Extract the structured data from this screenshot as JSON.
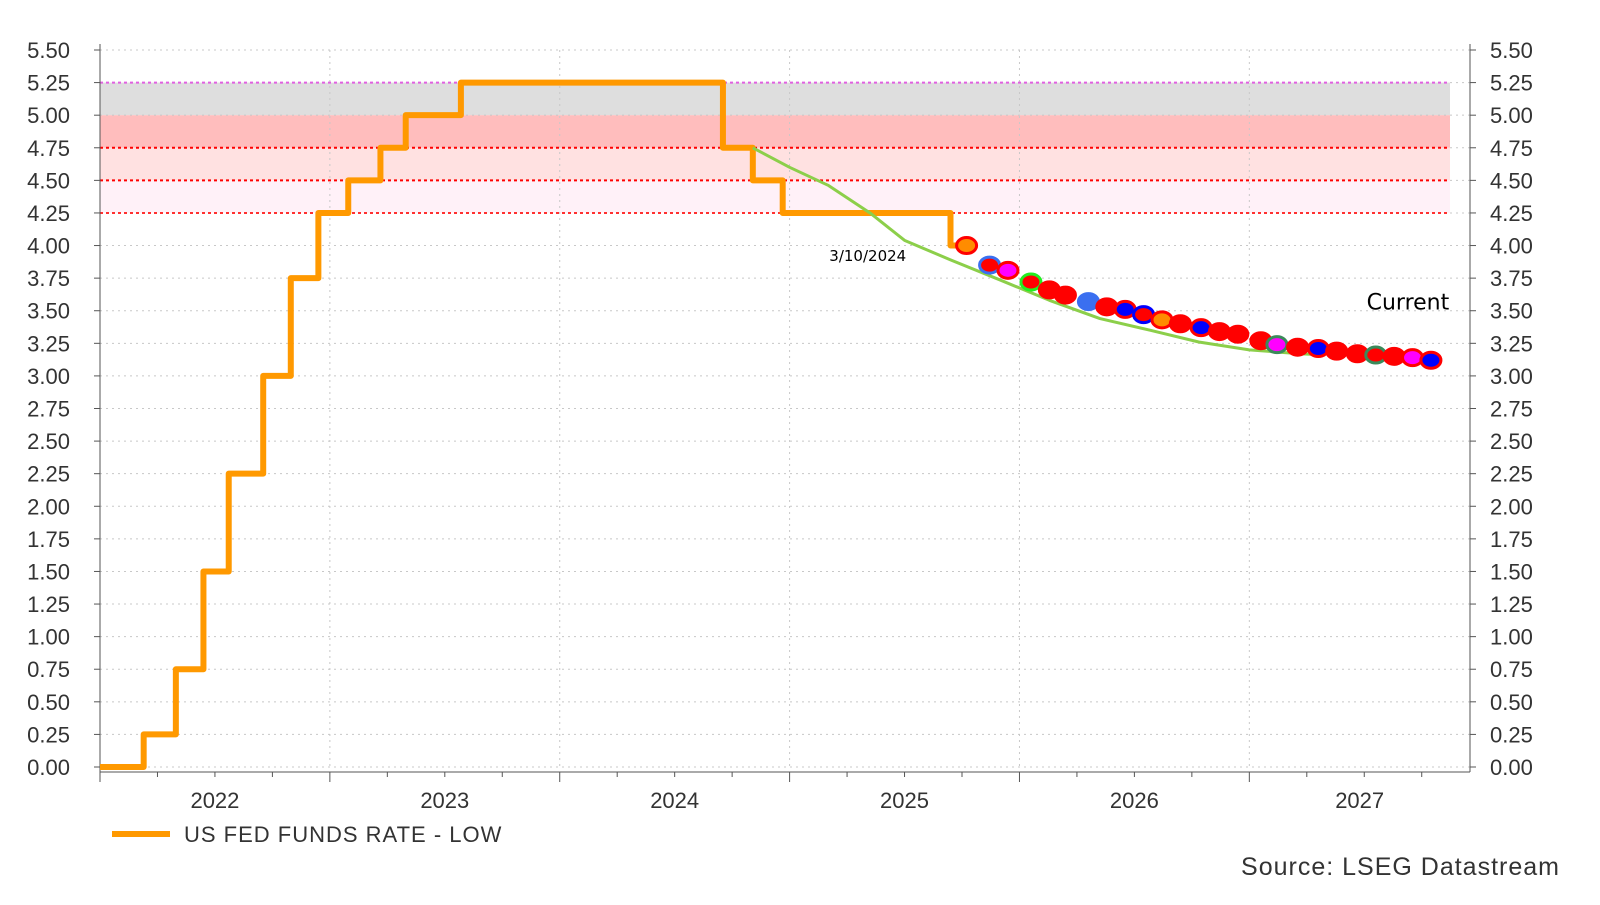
{
  "chart_data": {
    "type": "line",
    "title": "",
    "xlabel": "",
    "ylabel": "",
    "ylim": [
      0,
      5.5
    ],
    "y_ticks": [
      "0.00",
      "0.25",
      "0.50",
      "0.75",
      "1.00",
      "1.25",
      "1.50",
      "1.75",
      "2.00",
      "2.25",
      "2.50",
      "2.75",
      "3.00",
      "3.25",
      "3.50",
      "3.75",
      "4.00",
      "4.25",
      "4.50",
      "4.75",
      "5.00",
      "5.25",
      "5.50"
    ],
    "xlim": [
      2022.0,
      2027.96
    ],
    "x_tick_labels": [
      "2022",
      "2023",
      "2024",
      "2025",
      "2026",
      "2027"
    ],
    "grid": true,
    "legend": {
      "placement": "bottom-left",
      "entries": [
        {
          "label": "US FED FUNDS RATE - LOW",
          "color": "#ff9900"
        }
      ]
    },
    "source": "Source: LSEG Datastream",
    "bands": [
      {
        "from": 5.0,
        "to": 5.25,
        "color": "#dedede"
      },
      {
        "from": 4.75,
        "to": 5.0,
        "color": "#ffbdbd"
      },
      {
        "from": 4.5,
        "to": 4.75,
        "color": "#ffe1e1"
      },
      {
        "from": 4.25,
        "to": 4.5,
        "color": "#fff1f8"
      }
    ],
    "ref_lines": [
      {
        "y": 5.25,
        "color": "#e060e0"
      },
      {
        "y": 4.75,
        "color": "#ff0000"
      },
      {
        "y": 4.5,
        "color": "#ff0000"
      },
      {
        "y": 4.25,
        "color": "#ff3030"
      }
    ],
    "series": [
      {
        "name": "US FED FUNDS RATE - LOW",
        "color": "#ff9900",
        "step": true,
        "points": [
          [
            2022.0,
            0
          ],
          [
            2022.19,
            0.25
          ],
          [
            2022.33,
            0.75
          ],
          [
            2022.45,
            1.5
          ],
          [
            2022.56,
            2.25
          ],
          [
            2022.71,
            3.0
          ],
          [
            2022.83,
            3.75
          ],
          [
            2022.95,
            4.25
          ],
          [
            2023.08,
            4.5
          ],
          [
            2023.22,
            4.75
          ],
          [
            2023.33,
            5.0
          ],
          [
            2023.57,
            5.25
          ],
          [
            2024.71,
            4.75
          ],
          [
            2024.84,
            4.5
          ],
          [
            2024.97,
            4.25
          ],
          [
            2025.7,
            4.0
          ],
          [
            2025.76,
            4.0
          ]
        ]
      },
      {
        "name": "3/10/2024",
        "color": "#8ccf4a",
        "points": [
          [
            2024.84,
            4.75
          ],
          [
            2025.0,
            4.6
          ],
          [
            2025.17,
            4.46
          ],
          [
            2025.35,
            4.25
          ],
          [
            2025.5,
            4.04
          ],
          [
            2025.7,
            3.89
          ],
          [
            2025.91,
            3.74
          ],
          [
            2026.13,
            3.58
          ],
          [
            2026.35,
            3.44
          ],
          [
            2026.57,
            3.35
          ],
          [
            2026.78,
            3.26
          ],
          [
            2027.0,
            3.2
          ],
          [
            2027.22,
            3.17
          ],
          [
            2027.33,
            3.16
          ]
        ]
      },
      {
        "name": "Current",
        "type": "scatter",
        "points": [
          {
            "x": 2025.77,
            "y": 4.0,
            "fill": "#ff8c00",
            "stroke": "#ff0000"
          },
          {
            "x": 2025.87,
            "y": 3.85,
            "fill": "#ff0000",
            "stroke": "#3a6ff0"
          },
          {
            "x": 2025.95,
            "y": 3.81,
            "fill": "#ff00ff",
            "stroke": "#ff0000"
          },
          {
            "x": 2026.05,
            "y": 3.72,
            "fill": "#ff0000",
            "stroke": "#22ee22"
          },
          {
            "x": 2026.13,
            "y": 3.66,
            "fill": "#ff0000",
            "stroke": "#ff0000"
          },
          {
            "x": 2026.2,
            "y": 3.62,
            "fill": "#ff0000",
            "stroke": "#ff0000"
          },
          {
            "x": 2026.3,
            "y": 3.57,
            "fill": "#3a6ff0",
            "stroke": "#3a6ff0"
          },
          {
            "x": 2026.38,
            "y": 3.53,
            "fill": "#ff0000",
            "stroke": "#ff0000"
          },
          {
            "x": 2026.46,
            "y": 3.51,
            "fill": "#0000ff",
            "stroke": "#ff0000"
          },
          {
            "x": 2026.54,
            "y": 3.47,
            "fill": "#ff0000",
            "stroke": "#0000ff"
          },
          {
            "x": 2026.62,
            "y": 3.43,
            "fill": "#ff8c00",
            "stroke": "#ff0000"
          },
          {
            "x": 2026.7,
            "y": 3.4,
            "fill": "#ff0000",
            "stroke": "#ff0000"
          },
          {
            "x": 2026.79,
            "y": 3.37,
            "fill": "#0000ff",
            "stroke": "#ff0000"
          },
          {
            "x": 2026.87,
            "y": 3.34,
            "fill": "#ff0000",
            "stroke": "#ff0000"
          },
          {
            "x": 2026.95,
            "y": 3.32,
            "fill": "#ff0000",
            "stroke": "#ff0000"
          },
          {
            "x": 2027.05,
            "y": 3.27,
            "fill": "#ff0000",
            "stroke": "#ff0000"
          },
          {
            "x": 2027.12,
            "y": 3.24,
            "fill": "#ff00ff",
            "stroke": "#3a8a5a"
          },
          {
            "x": 2027.21,
            "y": 3.22,
            "fill": "#ff0000",
            "stroke": "#ff0000"
          },
          {
            "x": 2027.3,
            "y": 3.21,
            "fill": "#0000ff",
            "stroke": "#ff0000"
          },
          {
            "x": 2027.38,
            "y": 3.19,
            "fill": "#ff0000",
            "stroke": "#ff0000"
          },
          {
            "x": 2027.47,
            "y": 3.17,
            "fill": "#ff0000",
            "stroke": "#ff0000"
          },
          {
            "x": 2027.55,
            "y": 3.16,
            "fill": "#ff0000",
            "stroke": "#3a8a5a"
          },
          {
            "x": 2027.63,
            "y": 3.15,
            "fill": "#ff0000",
            "stroke": "#ff0000"
          },
          {
            "x": 2027.71,
            "y": 3.14,
            "fill": "#ff00ff",
            "stroke": "#ff0000"
          },
          {
            "x": 2027.79,
            "y": 3.12,
            "fill": "#0000ff",
            "stroke": "#ff0000"
          }
        ]
      }
    ],
    "annotations": [
      {
        "text": "3/10/2024",
        "x": 2025.34,
        "y": 3.88
      },
      {
        "text": "Current",
        "x": 2027.69,
        "y": 3.51
      }
    ]
  }
}
